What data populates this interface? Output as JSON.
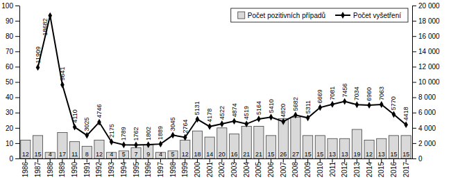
{
  "chart_data": {
    "type": "bar",
    "categories": [
      "1986",
      "1987",
      "1988",
      "1989",
      "1990",
      "1991",
      "1992",
      "1993",
      "1994",
      "1995",
      "1996",
      "1997",
      "1998",
      "1999",
      "2000",
      "2001",
      "2002",
      "2003",
      "2004",
      "2005",
      "2006",
      "2007",
      "2008",
      "2009",
      "2010",
      "2011",
      "2012",
      "2013",
      "2014",
      "2015",
      "2016",
      "2017"
    ],
    "series": [
      {
        "name": "Počet pozitivních případů",
        "type": "bar",
        "color": "#d9d9d9",
        "values": [
          12,
          15,
          4,
          17,
          11,
          8,
          12,
          4,
          5,
          7,
          9,
          4,
          5,
          12,
          18,
          14,
          20,
          16,
          21,
          21,
          15,
          26,
          27,
          15,
          15,
          13,
          13,
          19,
          12,
          13,
          15,
          15
        ]
      },
      {
        "name": "Počet vyšetření",
        "type": "line",
        "axis": "y2",
        "color": "#000000",
        "marker": "diamond",
        "line_style": "solid",
        "values": [
          null,
          11909,
          18682,
          9641,
          4110,
          3025,
          4746,
          2175,
          1789,
          1762,
          1802,
          1889,
          3045,
          2764,
          5131,
          4178,
          4522,
          4874,
          4519,
          5164,
          5410,
          4820,
          5682,
          5311,
          6669,
          7081,
          7456,
          7034,
          6960,
          7063,
          5770,
          4418
        ]
      }
    ],
    "ylim": [
      0,
      100
    ],
    "yticks": [
      0,
      10,
      20,
      30,
      40,
      50,
      60,
      70,
      80,
      90,
      100
    ],
    "y2lim": [
      0,
      20000
    ],
    "y2ticks": [
      0,
      {
        "value": 2000,
        "label": "2 000"
      },
      {
        "value": 4000,
        "label": "4 000"
      },
      {
        "value": 6000,
        "label": "6 000"
      },
      {
        "value": 8000,
        "label": "8 000"
      },
      {
        "value": 10000,
        "label": "10 000"
      },
      {
        "value": 12000,
        "label": "12 000"
      },
      {
        "value": 14000,
        "label": "14 000"
      },
      {
        "value": 16000,
        "label": "16 000"
      },
      {
        "value": 18000,
        "label": "18 000"
      },
      {
        "value": 20000,
        "label": "20 000"
      }
    ],
    "grid": false,
    "legend": "upper right",
    "data_labels": true
  }
}
